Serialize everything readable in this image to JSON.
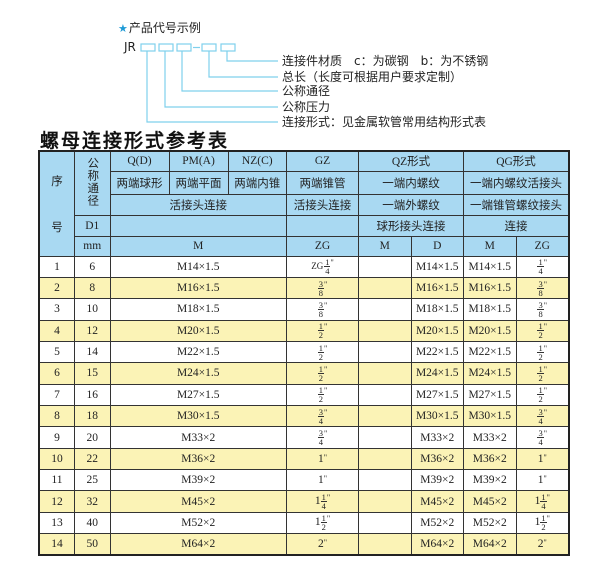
{
  "code_example": {
    "title": "产品代号示例",
    "prefix": "JR",
    "labels": [
      "连接件材质　c：为碳钢　b：为不锈钢",
      "总长（长度可根据用户要求定制）",
      "公称通径",
      "公称压力",
      "连接形式：见金属软管常用结构形式表"
    ],
    "accent_color": "#1e9ad6"
  },
  "table_title": "螺母连接形式参考表",
  "header": {
    "seq": "序",
    "seq2": "号",
    "dn": "公称通径",
    "qd": "Q(D)",
    "pma": "PM(A)",
    "nzc": "NZ(C)",
    "gz": "GZ",
    "qz": "QZ形式",
    "qg": "QG形式",
    "qd_desc": "两端球形",
    "pma_desc": "两端平面",
    "nzc_desc": "两端内锥",
    "gz_desc": "两端锥管",
    "qz_desc1": "一端内螺纹",
    "qg_desc1": "一端内螺纹活接头",
    "union1": "活接头连接",
    "union2": "活接头连接",
    "qz_desc2": "一端外螺纹",
    "qg_desc2": "一端锥管螺纹接头",
    "d1": "D1",
    "qz_desc3": "球形接头连接",
    "qg_desc3": "连接",
    "mm": "mm",
    "m": "M",
    "zg": "ZG",
    "qz_m": "M",
    "qz_d": "D",
    "qg_m": "M",
    "qg_zg": "ZG"
  },
  "rows": [
    {
      "seq": "1",
      "dn": "6",
      "m": "M14×1.5",
      "zg": {
        "pre": "ZG",
        "whole": "",
        "num": "1",
        "den": "4"
      },
      "qz_m": "",
      "qz_d": "M14×1.5",
      "qg_m": "M14×1.5",
      "qg_zg": {
        "pre": "",
        "whole": "",
        "num": "1",
        "den": "4"
      }
    },
    {
      "seq": "2",
      "dn": "8",
      "m": "M16×1.5",
      "zg": {
        "pre": "",
        "whole": "",
        "num": "3",
        "den": "8"
      },
      "qz_m": "",
      "qz_d": "M16×1.5",
      "qg_m": "M16×1.5",
      "qg_zg": {
        "pre": "",
        "whole": "",
        "num": "3",
        "den": "8"
      }
    },
    {
      "seq": "3",
      "dn": "10",
      "m": "M18×1.5",
      "zg": {
        "pre": "",
        "whole": "",
        "num": "3",
        "den": "8"
      },
      "qz_m": "",
      "qz_d": "M18×1.5",
      "qg_m": "M18×1.5",
      "qg_zg": {
        "pre": "",
        "whole": "",
        "num": "3",
        "den": "8"
      }
    },
    {
      "seq": "4",
      "dn": "12",
      "m": "M20×1.5",
      "zg": {
        "pre": "",
        "whole": "",
        "num": "1",
        "den": "2"
      },
      "qz_m": "",
      "qz_d": "M20×1.5",
      "qg_m": "M20×1.5",
      "qg_zg": {
        "pre": "",
        "whole": "",
        "num": "1",
        "den": "2"
      }
    },
    {
      "seq": "5",
      "dn": "14",
      "m": "M22×1.5",
      "zg": {
        "pre": "",
        "whole": "",
        "num": "1",
        "den": "2"
      },
      "qz_m": "",
      "qz_d": "M22×1.5",
      "qg_m": "M22×1.5",
      "qg_zg": {
        "pre": "",
        "whole": "",
        "num": "1",
        "den": "2"
      }
    },
    {
      "seq": "6",
      "dn": "15",
      "m": "M24×1.5",
      "zg": {
        "pre": "",
        "whole": "",
        "num": "1",
        "den": "2"
      },
      "qz_m": "",
      "qz_d": "M24×1.5",
      "qg_m": "M24×1.5",
      "qg_zg": {
        "pre": "",
        "whole": "",
        "num": "1",
        "den": "2"
      }
    },
    {
      "seq": "7",
      "dn": "16",
      "m": "M27×1.5",
      "zg": {
        "pre": "",
        "whole": "",
        "num": "1",
        "den": "2"
      },
      "qz_m": "",
      "qz_d": "M27×1.5",
      "qg_m": "M27×1.5",
      "qg_zg": {
        "pre": "",
        "whole": "",
        "num": "1",
        "den": "2"
      }
    },
    {
      "seq": "8",
      "dn": "18",
      "m": "M30×1.5",
      "zg": {
        "pre": "",
        "whole": "",
        "num": "3",
        "den": "4"
      },
      "qz_m": "",
      "qz_d": "M30×1.5",
      "qg_m": "M30×1.5",
      "qg_zg": {
        "pre": "",
        "whole": "",
        "num": "3",
        "den": "4"
      }
    },
    {
      "seq": "9",
      "dn": "20",
      "m": "M33×2",
      "zg": {
        "pre": "",
        "whole": "",
        "num": "3",
        "den": "4"
      },
      "qz_m": "",
      "qz_d": "M33×2",
      "qg_m": "M33×2",
      "qg_zg": {
        "pre": "",
        "whole": "",
        "num": "3",
        "den": "4"
      }
    },
    {
      "seq": "10",
      "dn": "22",
      "m": "M36×2",
      "zg": {
        "pre": "",
        "whole": "1",
        "num": "",
        "den": ""
      },
      "qz_m": "",
      "qz_d": "M36×2",
      "qg_m": "M36×2",
      "qg_zg": {
        "pre": "",
        "whole": "1",
        "num": "",
        "den": ""
      }
    },
    {
      "seq": "11",
      "dn": "25",
      "m": "M39×2",
      "zg": {
        "pre": "",
        "whole": "1",
        "num": "",
        "den": ""
      },
      "qz_m": "",
      "qz_d": "M39×2",
      "qg_m": "M39×2",
      "qg_zg": {
        "pre": "",
        "whole": "1",
        "num": "",
        "den": ""
      }
    },
    {
      "seq": "12",
      "dn": "32",
      "m": "M45×2",
      "zg": {
        "pre": "",
        "whole": "1",
        "num": "1",
        "den": "4"
      },
      "qz_m": "",
      "qz_d": "M45×2",
      "qg_m": "M45×2",
      "qg_zg": {
        "pre": "",
        "whole": "1",
        "num": "1",
        "den": "4"
      }
    },
    {
      "seq": "13",
      "dn": "40",
      "m": "M52×2",
      "zg": {
        "pre": "",
        "whole": "1",
        "num": "1",
        "den": "2"
      },
      "qz_m": "",
      "qz_d": "M52×2",
      "qg_m": "M52×2",
      "qg_zg": {
        "pre": "",
        "whole": "1",
        "num": "1",
        "den": "2"
      }
    },
    {
      "seq": "14",
      "dn": "50",
      "m": "M64×2",
      "zg": {
        "pre": "",
        "whole": "2",
        "num": "",
        "den": ""
      },
      "qz_m": "",
      "qz_d": "M64×2",
      "qg_m": "M64×2",
      "qg_zg": {
        "pre": "",
        "whole": "2",
        "num": "",
        "den": ""
      }
    }
  ],
  "inch_mark": "\"",
  "colors": {
    "header_bg": "#a9d9f2",
    "alt_row_bg": "#fbf3b6",
    "diagram_line": "#7fd0ec"
  }
}
